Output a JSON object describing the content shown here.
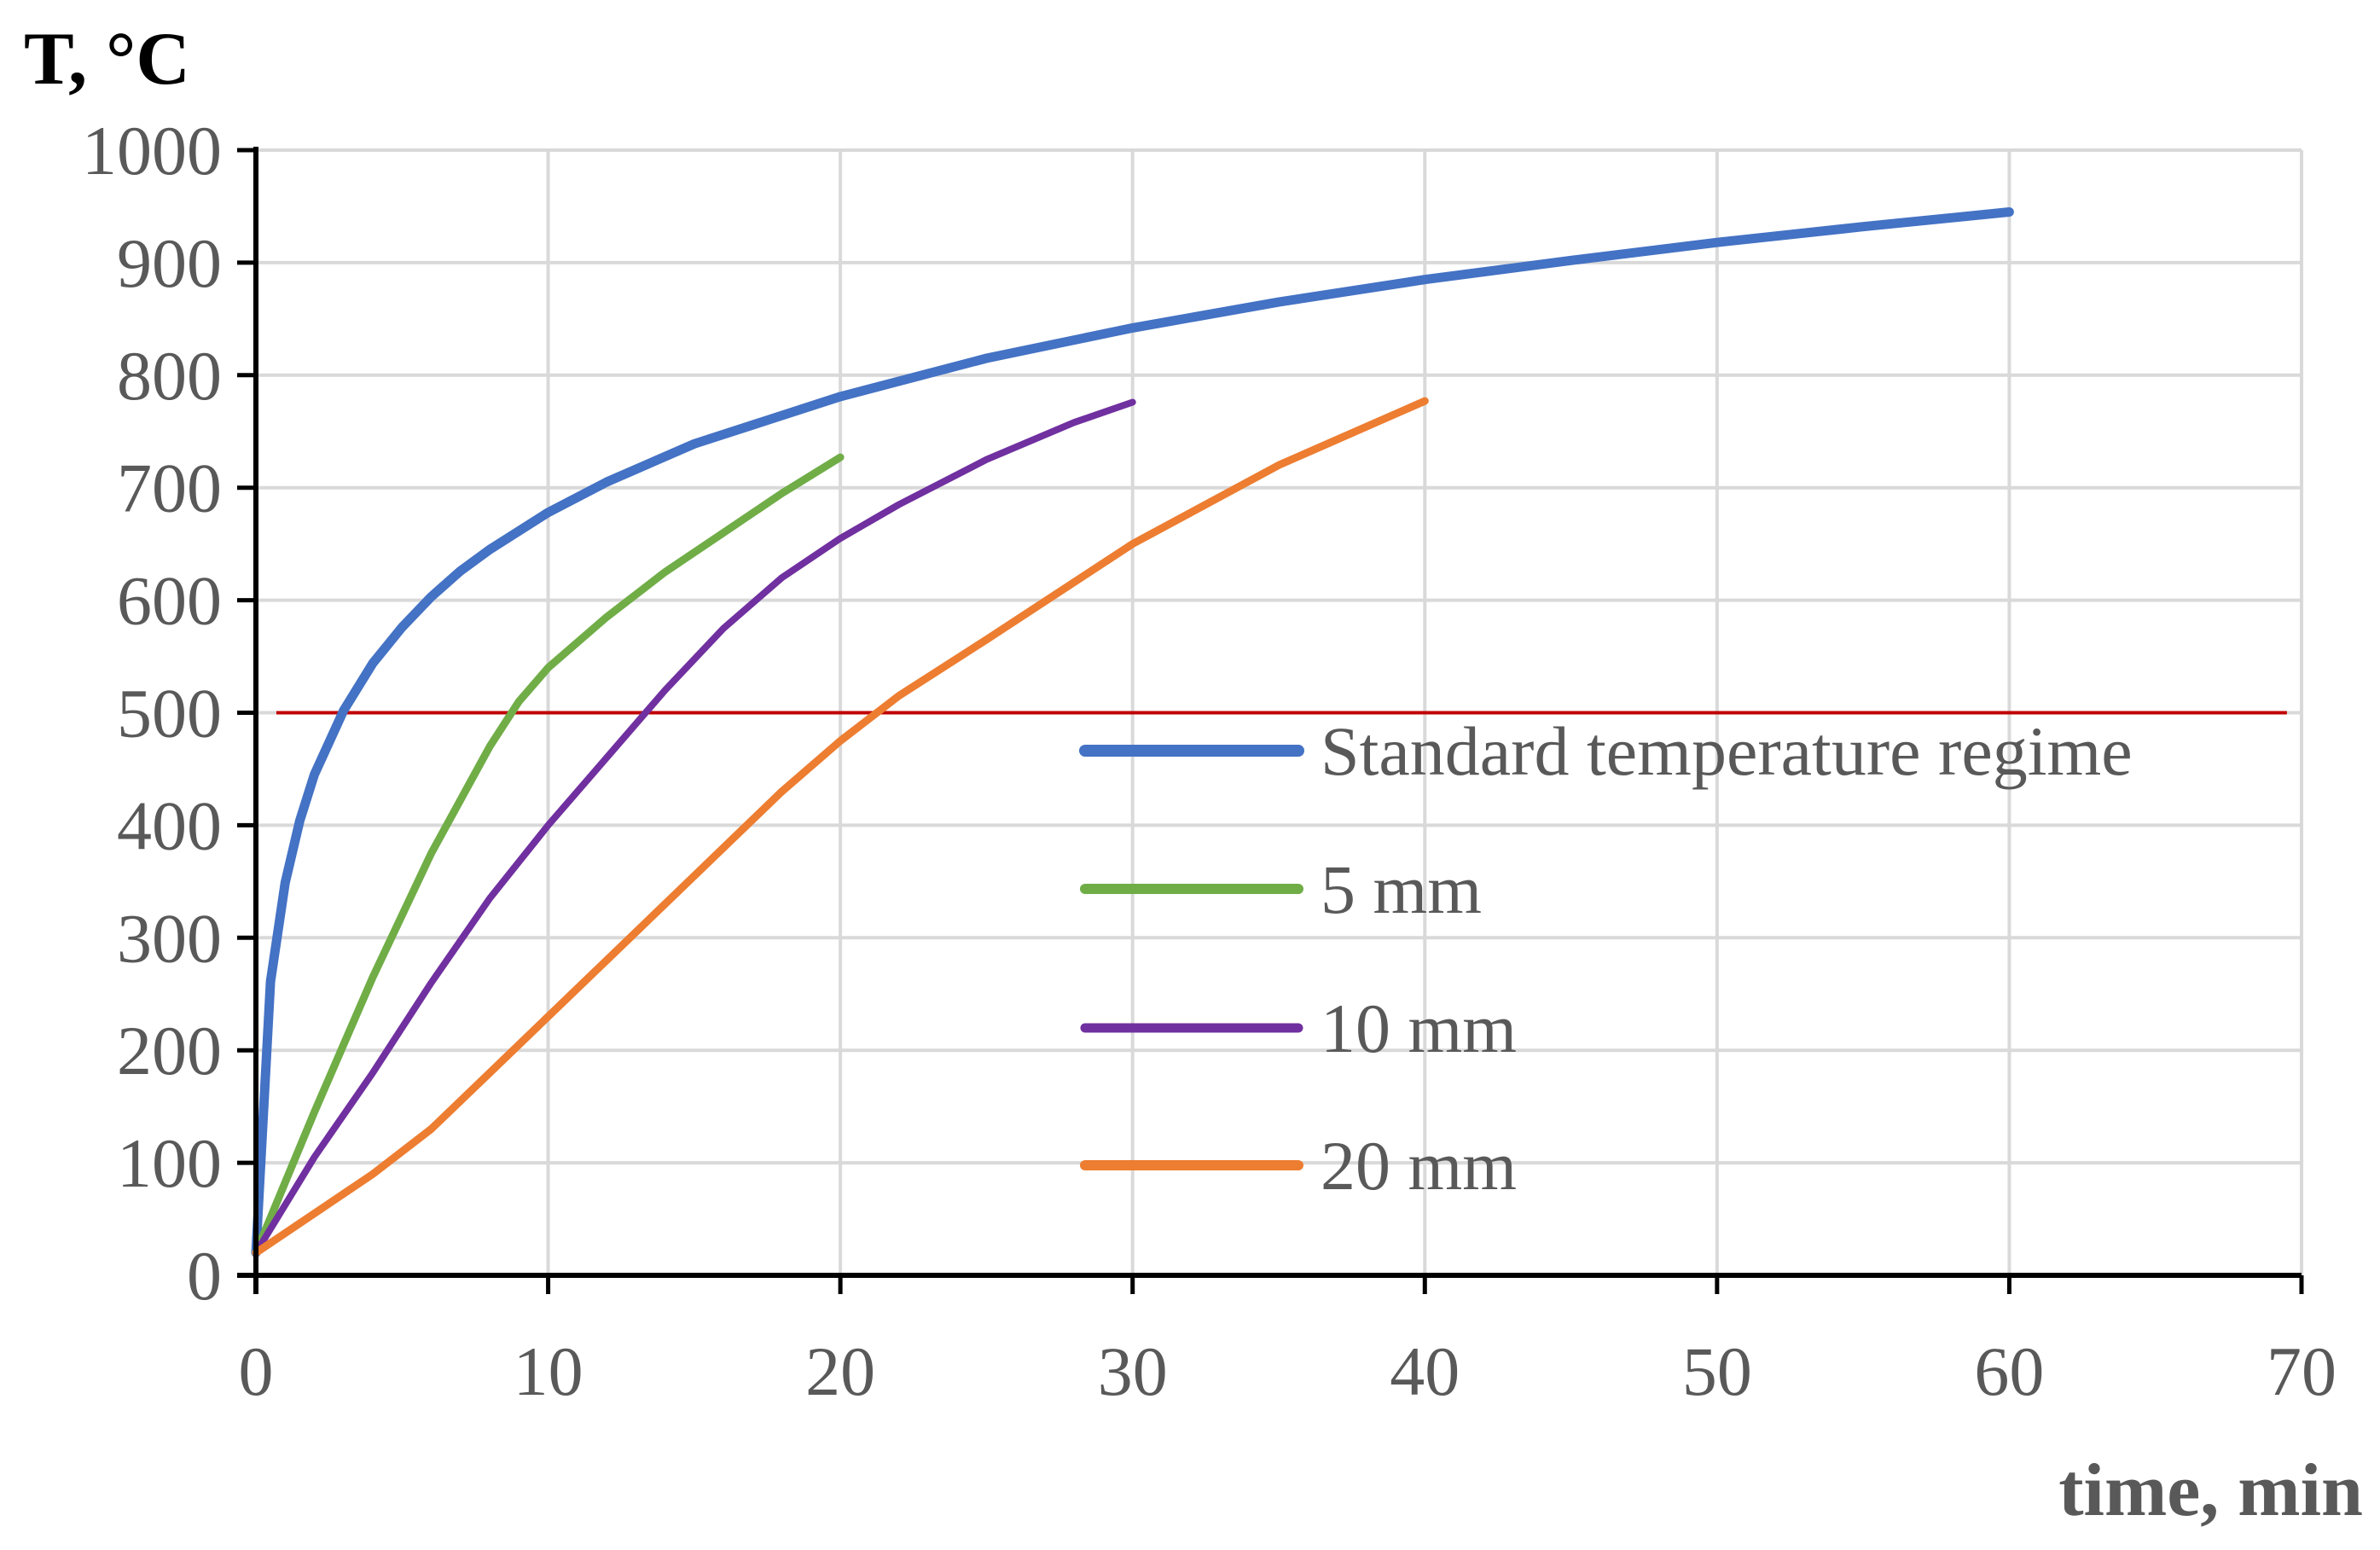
{
  "chart_data": {
    "type": "line",
    "title": "",
    "ylabel": "T, °C",
    "xlabel": "time, min",
    "xlim": [
      0,
      70
    ],
    "ylim": [
      0,
      1000
    ],
    "xticks": [
      0,
      10,
      20,
      30,
      40,
      50,
      60,
      70
    ],
    "yticks": [
      0,
      100,
      200,
      300,
      400,
      500,
      600,
      700,
      800,
      900,
      1000
    ],
    "grid": true,
    "legend_position": "center-right",
    "reference_line": {
      "y": 500,
      "x_from": 0.7,
      "x_to": 69.5,
      "color": "#c00000"
    },
    "series": [
      {
        "name": "Standard temperature regime",
        "color": "#4472c4",
        "width": 11,
        "x": [
          0,
          0.5,
          1,
          1.5,
          2,
          3,
          4,
          5,
          6,
          7,
          8,
          10,
          12,
          15,
          20,
          25,
          30,
          35,
          40,
          45,
          50,
          55,
          60
        ],
        "y": [
          20,
          261,
          349,
          404,
          445,
          502,
          544,
          576,
          603,
          626,
          645,
          678,
          705,
          739,
          781,
          815,
          842,
          865,
          885,
          902,
          918,
          932,
          945
        ]
      },
      {
        "name": "5 mm",
        "color": "#70ad47",
        "width": 9,
        "x": [
          0,
          2,
          4,
          6,
          8,
          9,
          10,
          12,
          14,
          16,
          18,
          20
        ],
        "y": [
          20,
          145,
          265,
          375,
          470,
          510,
          540,
          585,
          625,
          660,
          695,
          727
        ]
      },
      {
        "name": "10 mm",
        "color": "#7030a0",
        "width": 8,
        "x": [
          0,
          2,
          4,
          6,
          8,
          10,
          12,
          14,
          16,
          18,
          20,
          22,
          25,
          28,
          30
        ],
        "y": [
          20,
          105,
          180,
          260,
          335,
          400,
          460,
          520,
          575,
          620,
          655,
          685,
          725,
          758,
          776
        ]
      },
      {
        "name": "20 mm",
        "color": "#ed7d31",
        "width": 9,
        "x": [
          0,
          2,
          4,
          6,
          8,
          10,
          12,
          14,
          16,
          18,
          20,
          22,
          25,
          30,
          35,
          40
        ],
        "y": [
          20,
          55,
          90,
          130,
          180,
          230,
          280,
          330,
          380,
          430,
          475,
          515,
          565,
          650,
          720,
          777
        ]
      }
    ]
  }
}
